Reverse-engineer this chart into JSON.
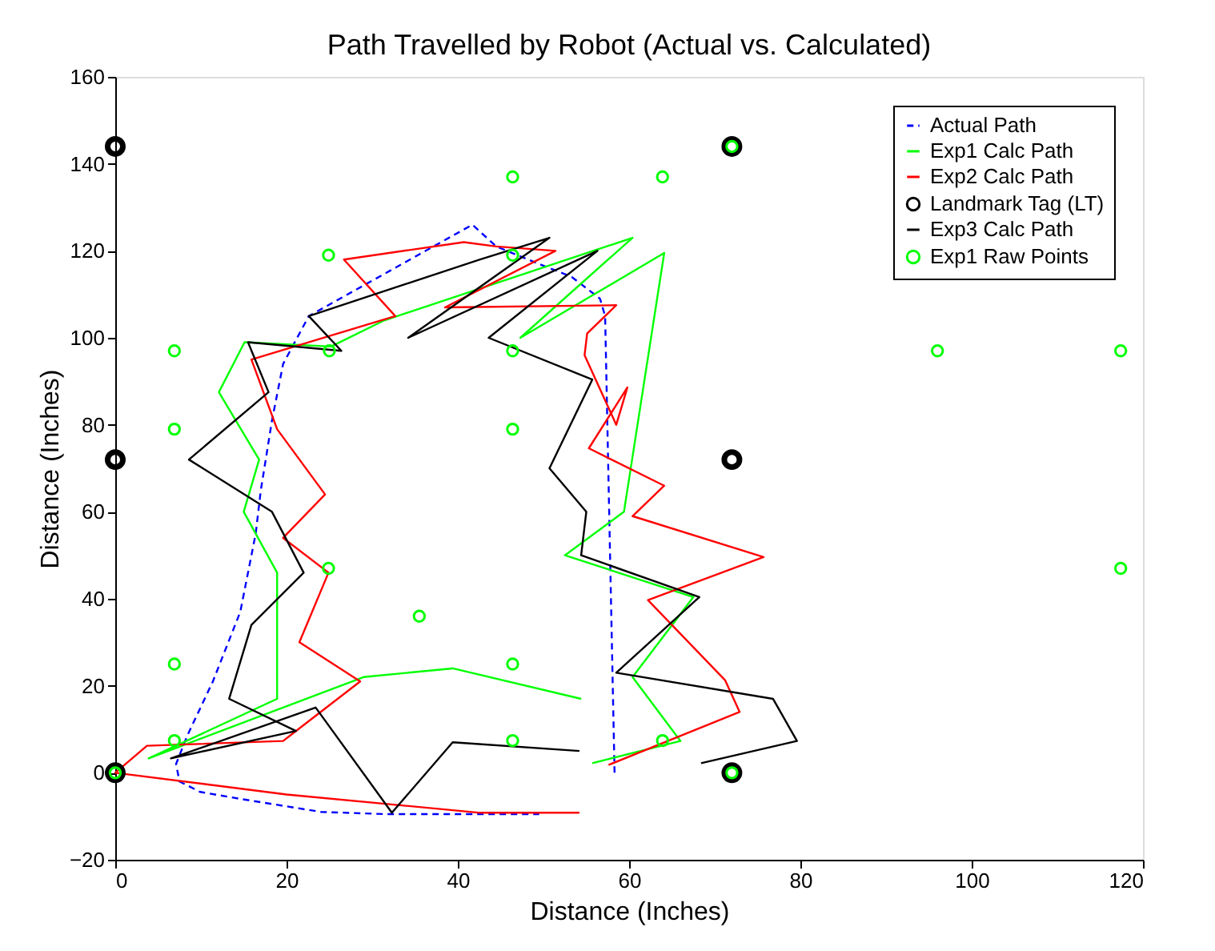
{
  "chart_data": {
    "type": "line",
    "title": "Path Travelled by Robot (Actual vs. Calculated)",
    "xlabel": "Distance (Inches)",
    "ylabel": "Distance (Inches)",
    "xlim": [
      0,
      120
    ],
    "xticks": [
      0,
      20,
      40,
      60,
      80,
      100,
      120
    ],
    "ylim": [
      -20,
      160
    ],
    "yticks": [
      -20,
      0,
      20,
      40,
      60,
      80,
      100,
      120,
      140,
      160
    ],
    "grid": false,
    "legend": "top right",
    "series": [
      {
        "name": "Actual Path",
        "color": "#0000ff",
        "line_style": "dashed",
        "x": [
          58.3,
          57.2,
          56.6,
          53.3,
          48.2,
          44.5,
          41.7,
          22.6,
          19.6,
          18.3,
          17,
          16.4,
          14.6,
          11.4,
          8.4,
          7.1,
          7.5,
          9.9,
          14.6,
          24,
          31.4,
          49.5
        ],
        "values": [
          0,
          105,
          109,
          114,
          118,
          121,
          126,
          105,
          94,
          81,
          65,
          55,
          37,
          21,
          8.5,
          2,
          -2,
          -4.4,
          -6,
          -9,
          -9.5,
          -9.5
        ]
      },
      {
        "name": "Exp1 Calc Path",
        "color": "#00ff00",
        "line_style": "solid",
        "x": [
          55.7,
          66,
          60.4,
          67.5,
          52.5,
          59.4,
          64.1,
          47.3,
          60.4,
          31.4,
          25.2,
          15.1,
          12.1,
          16.8,
          15,
          18.9,
          18.9,
          3.9,
          29,
          39.4,
          54.4
        ],
        "values": [
          2.2,
          7.3,
          22,
          40.4,
          50,
          60,
          119.5,
          100,
          123,
          104,
          98,
          99,
          87.5,
          72,
          60,
          46,
          17,
          3.3,
          22,
          24,
          17
        ]
      },
      {
        "name": "Exp2 Calc Path",
        "color": "#ff0000",
        "line_style": "solid",
        "x": [
          57.6,
          72.9,
          71.2,
          62.2,
          75.7,
          60.4,
          64.1,
          55.3,
          59.8,
          58.5,
          54.8,
          55.1,
          58.5,
          38.5,
          51.4,
          44.5,
          40.7,
          26.7,
          32.7,
          15.9,
          18.9,
          24.5,
          19.6,
          24.9,
          21.5,
          28.6,
          20.7,
          19.6,
          3.7,
          0,
          20,
          42.6,
          54.2
        ],
        "values": [
          1.8,
          14,
          21.3,
          39.7,
          49.6,
          59,
          66,
          74.6,
          88.6,
          80,
          96,
          101,
          107.5,
          107,
          120,
          121,
          122,
          118,
          105,
          95,
          79,
          64,
          54,
          46,
          30,
          21,
          9,
          7.3,
          6.2,
          0,
          -5,
          -9.2,
          -9.2
        ]
      },
      {
        "name": "Landmark Tag (LT)",
        "color": "#000000",
        "type": "scatter",
        "marker": "circle",
        "x": [
          0,
          0,
          0,
          72,
          72,
          72
        ],
        "values": [
          0,
          72,
          144,
          144,
          72,
          0
        ]
      },
      {
        "name": "Exp3 Calc Path",
        "color": "#000000",
        "line_style": "solid",
        "x": [
          68.4,
          79.6,
          76.8,
          58.5,
          68.2,
          54.4,
          55,
          50.7,
          55.7,
          43.6,
          56.3,
          34.2,
          50.7,
          42.6,
          22.6,
          26.4,
          15.5,
          17.9,
          8.6,
          18.3,
          22,
          15.9,
          13.3,
          21.1,
          6.5,
          23.4,
          32.3,
          39.4,
          54.2
        ],
        "values": [
          2.2,
          7.3,
          17,
          23,
          40.4,
          50,
          60,
          70,
          90.4,
          100,
          120,
          100,
          123,
          118,
          105,
          97,
          99,
          87.5,
          72,
          60,
          46,
          34,
          17,
          9.6,
          3.3,
          15,
          -9.2,
          7,
          5
        ]
      },
      {
        "name": "Exp1 Raw Points",
        "color": "#00ff00",
        "type": "scatter",
        "marker": "circle",
        "x": [
          0,
          6.9,
          6.9,
          6.9,
          6.9,
          24.9,
          25,
          24.9,
          35.5,
          46.4,
          46.4,
          46.4,
          46.4,
          46.4,
          46.4,
          63.9,
          63.9,
          72,
          72,
          96,
          117.4,
          117.4
        ],
        "values": [
          0,
          97,
          79,
          25,
          7.4,
          119,
          97,
          47,
          36,
          137,
          119,
          97,
          79,
          25,
          7.4,
          137,
          7.4,
          0,
          144,
          97,
          97,
          47
        ]
      }
    ]
  }
}
